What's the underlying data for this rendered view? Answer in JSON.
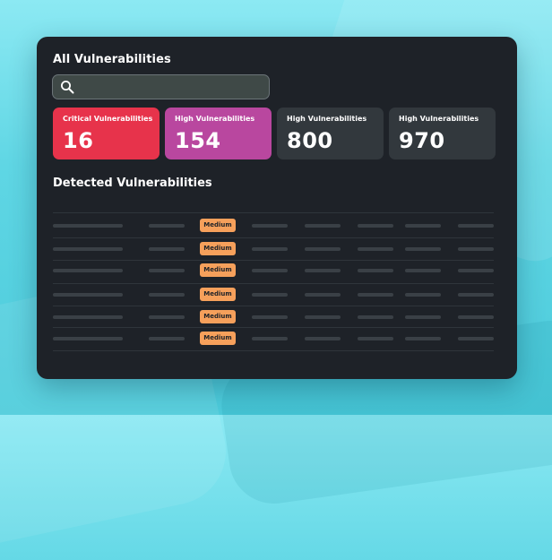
{
  "panel": {
    "title": "All Vulnerabilities"
  },
  "search": {
    "placeholder": "",
    "value": ""
  },
  "stats": [
    {
      "label": "Critical Vulnerabilities",
      "value": "16",
      "color": "#e7334b"
    },
    {
      "label": "High Vulnerabilities",
      "value": "154",
      "color": "#b9479f"
    },
    {
      "label": "High Vulnerabilities",
      "value": "800",
      "color": "#32383d"
    },
    {
      "label": "High Vulnerabilities",
      "value": "970",
      "color": "#32383d"
    }
  ],
  "detected": {
    "title": "Detected Vulnerabilities",
    "rows": [
      {
        "severity": "Medium"
      },
      {
        "severity": "Medium"
      },
      {
        "severity": "Medium"
      },
      {
        "severity": "Medium"
      },
      {
        "severity": "Medium"
      },
      {
        "severity": "Medium"
      }
    ]
  },
  "colors": {
    "panel_bg": "#1e2228",
    "badge_medium": "#f6a05b",
    "page_bg": "#5fd6e4"
  },
  "icons": {
    "search": "search-icon"
  }
}
